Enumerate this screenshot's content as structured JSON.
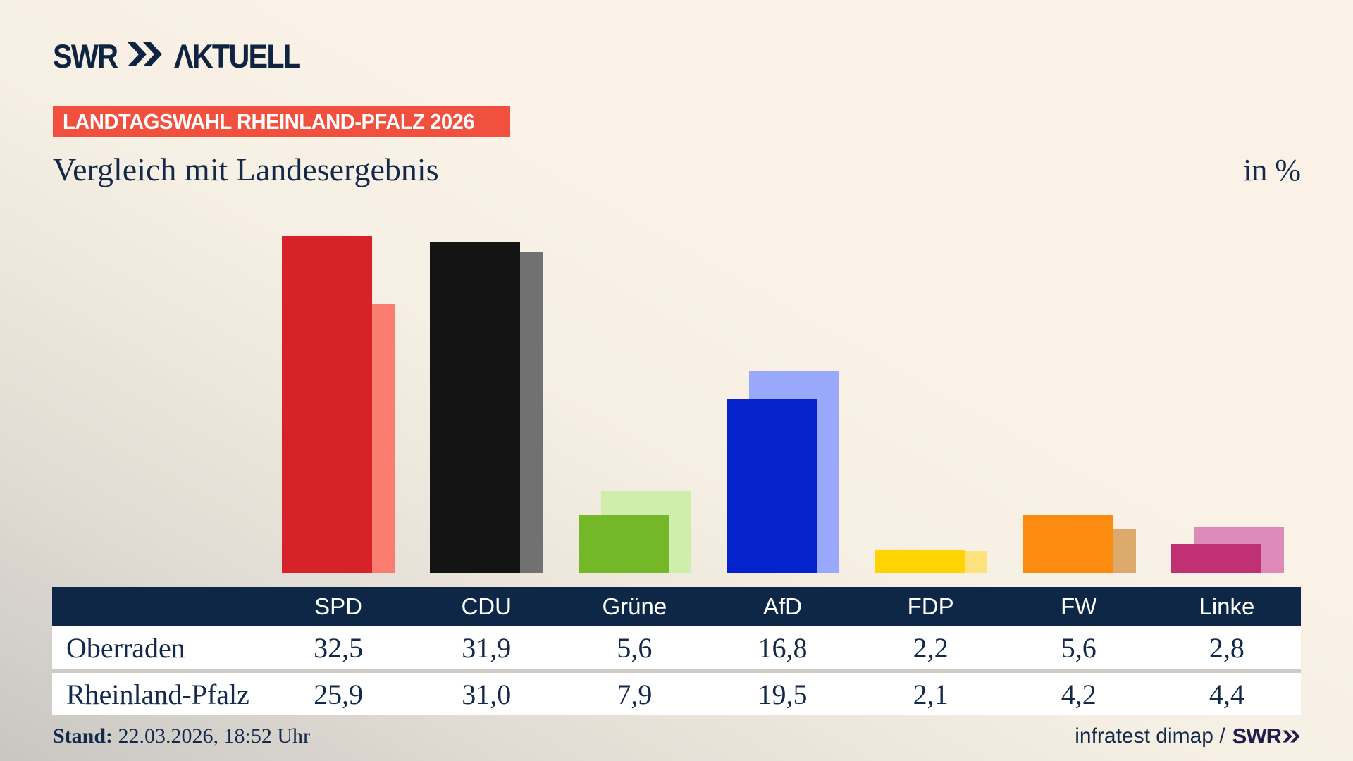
{
  "header": {
    "logo_swr": "SWR",
    "logo_aktuell": "ΛKTUELL",
    "badge": "LANDTAGSWAHL RHEINLAND-PFALZ 2026",
    "title": "Vergleich mit Landesergebnis",
    "unit_label": "in %"
  },
  "chart_data": {
    "type": "bar",
    "title": "Vergleich mit Landesergebnis",
    "unit": "%",
    "categories": [
      "SPD",
      "CDU",
      "Grüne",
      "AfD",
      "FDP",
      "FW",
      "Linke"
    ],
    "series": [
      {
        "name": "Oberraden",
        "values": [
          32.5,
          31.9,
          5.6,
          16.8,
          2.2,
          5.6,
          2.8
        ]
      },
      {
        "name": "Rheinland-Pfalz",
        "values": [
          25.9,
          31.0,
          7.9,
          19.5,
          2.1,
          4.2,
          4.4
        ]
      }
    ],
    "colors": {
      "front": [
        "#d7222a",
        "#141414",
        "#74b82a",
        "#0522cd",
        "#ffd400",
        "#fb8c0f",
        "#bf3173"
      ],
      "back": [
        "#fa7d70",
        "#717171",
        "#cfeeab",
        "#9aa8fb",
        "#fce27d",
        "#dcaa6c",
        "#dd8ab8"
      ]
    },
    "ylim": [
      0,
      34
    ],
    "grid": false,
    "legend_position": "none"
  },
  "table": {
    "column_headers": [
      "SPD",
      "CDU",
      "Grüne",
      "AfD",
      "FDP",
      "FW",
      "Linke"
    ],
    "rows": [
      {
        "label": "Oberraden",
        "values": [
          "32,5",
          "31,9",
          "5,6",
          "16,8",
          "2,2",
          "5,6",
          "2,8"
        ]
      },
      {
        "label": "Rheinland-Pfalz",
        "values": [
          "25,9",
          "31,0",
          "7,9",
          "19,5",
          "2,1",
          "4,2",
          "4,4"
        ]
      }
    ]
  },
  "footer": {
    "stand_label": "Stand:",
    "stand_value": " 22.03.2026, 18:52 Uhr",
    "source_text": "infratest dimap / ",
    "source_logo": "SWR"
  },
  "colors": {
    "badge_red": "#f2503f",
    "navy": "#13294b",
    "table_header_bg": "#0e2746",
    "background_cream": "#faf2e7",
    "background_gray": "#c9c6c2"
  }
}
